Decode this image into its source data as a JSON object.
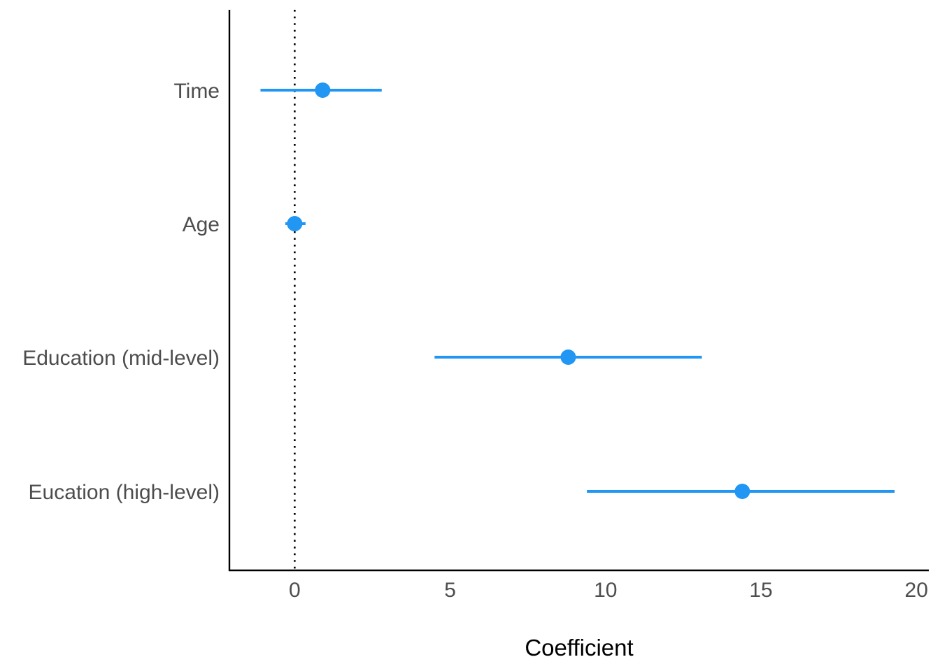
{
  "chart_data": {
    "type": "scatter",
    "subtype": "coefficient-plot",
    "title": "",
    "xlabel": "Coefficient",
    "ylabel": "",
    "xlim": [
      -2.1,
      20.4
    ],
    "xticks": [
      0,
      5,
      10,
      15,
      20
    ],
    "xtick_labels": [
      "0",
      "5",
      "10",
      "15",
      "20"
    ],
    "reference_line": {
      "x": 0,
      "style": "dotted"
    },
    "grid": false,
    "color": "#2196f3",
    "terms": [
      {
        "label": "Time",
        "estimate": 0.9,
        "lower": -1.1,
        "upper": 2.8
      },
      {
        "label": "Age",
        "estimate": 0.0,
        "lower": -0.3,
        "upper": 0.35
      },
      {
        "label": "Education (mid-level)",
        "estimate": 8.8,
        "lower": 4.5,
        "upper": 13.1
      },
      {
        "label": "Eucation (high-level)",
        "estimate": 14.4,
        "lower": 9.4,
        "upper": 19.3
      }
    ]
  }
}
